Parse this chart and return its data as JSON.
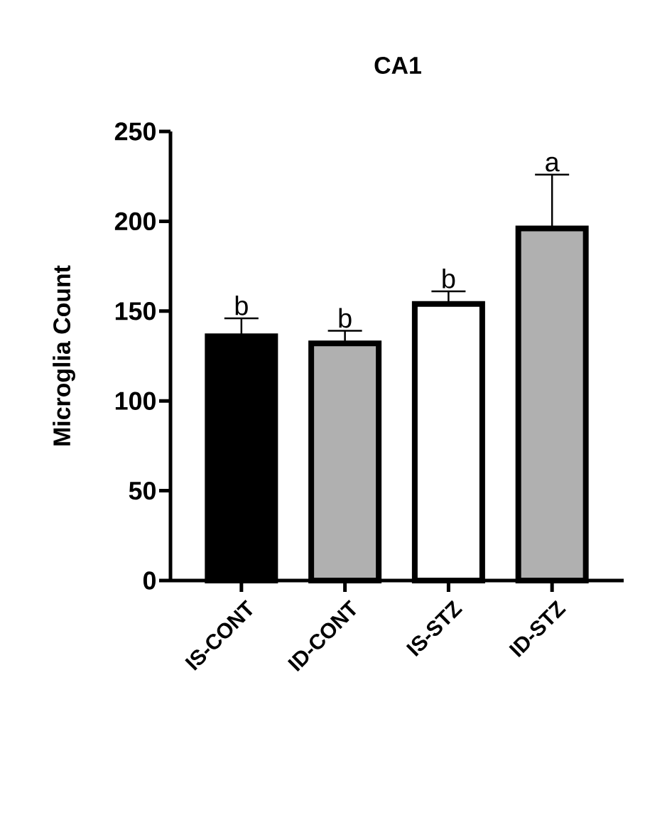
{
  "chart_data": {
    "type": "bar",
    "title": "CA1",
    "ylabel": "Microglia Count",
    "categories": [
      "IS-CONT",
      "ID-CONT",
      "IS-STZ",
      "ID-STZ"
    ],
    "values": [
      136,
      132,
      154,
      196
    ],
    "errors": [
      10,
      7,
      7,
      30
    ],
    "colors": [
      "#000000",
      "#b0b0b0",
      "#ffffff",
      "#b0b0b0"
    ],
    "ylim": [
      0,
      250
    ],
    "yticks": [
      0,
      50,
      100,
      150,
      200,
      250
    ],
    "annotations": [
      {
        "text": "b",
        "x": "IS-CONT",
        "y": 146
      },
      {
        "text": "b",
        "x": "ID-CONT",
        "y": 139
      },
      {
        "text": "b",
        "x": "IS-STZ",
        "y": 161
      },
      {
        "text": "a",
        "x": "ID-STZ",
        "y": 226
      }
    ]
  }
}
